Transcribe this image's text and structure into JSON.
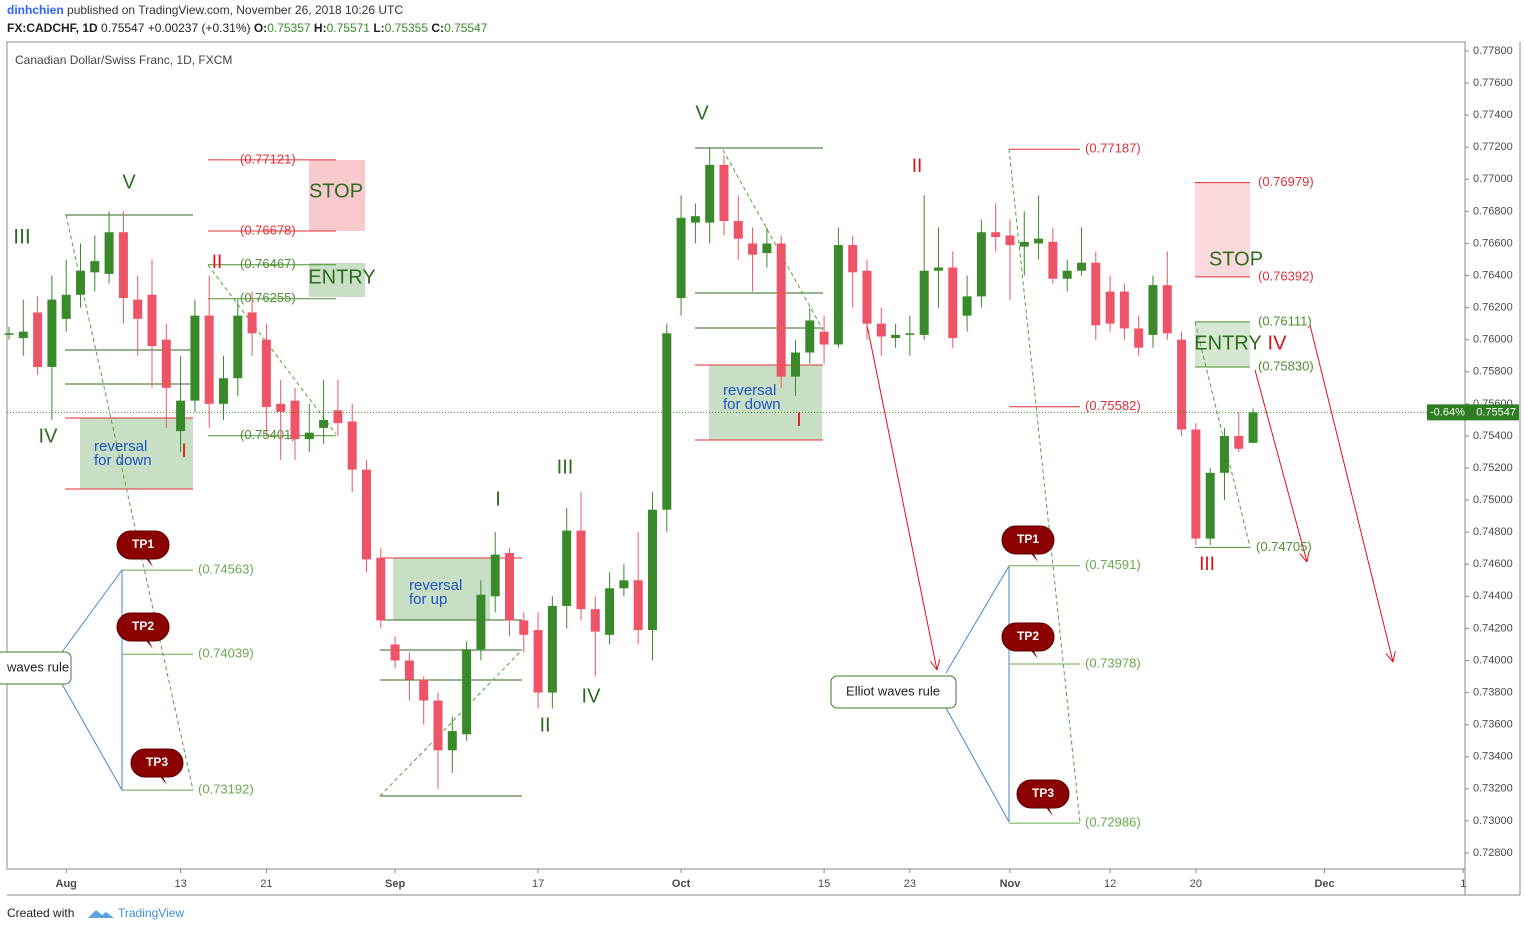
{
  "header": {
    "author": "dinhchien",
    "published": "published on TradingView.com, November 26, 2018 10:26 UTC",
    "symbol": "FX:CADCHF, 1D",
    "change": "+0.00237 (+0.31%)",
    "ohlc_labels": [
      "O:",
      "H:",
      "L:",
      "C:"
    ]
  },
  "footer": {
    "created": "Created with",
    "brand": "TradingView"
  },
  "chart_data": {
    "type": "candlestick",
    "title": "Canadian Dollar/Swiss Franc, 1D, FXCM",
    "last_change": "-0.64%",
    "up_color": "#3a8a2c",
    "down_color": "#ee5468",
    "x": [
      0,
      1,
      2,
      3,
      4,
      5,
      6,
      7,
      8,
      9,
      10,
      11,
      12,
      13,
      14,
      15,
      16,
      17,
      18,
      19,
      20,
      21,
      22,
      23,
      24,
      25,
      26,
      27,
      28,
      29,
      30,
      31,
      32,
      33,
      34,
      35,
      36,
      37,
      38,
      39,
      40,
      41,
      42,
      43,
      44,
      45,
      46,
      47,
      48,
      49,
      50,
      51,
      52,
      53,
      54,
      55,
      56,
      57,
      58,
      59,
      60,
      61,
      62,
      63,
      64,
      65,
      66,
      67,
      68,
      69,
      70,
      71,
      72,
      73,
      74,
      75,
      76,
      77,
      78,
      79,
      80,
      81,
      82,
      83,
      84,
      85,
      86,
      87
    ],
    "open": [
      0.7603,
      0.7601,
      0.7617,
      0.7583,
      0.7613,
      0.7628,
      0.7642,
      0.7641,
      0.7667,
      0.7625,
      0.7628,
      0.76,
      0.7543,
      0.7562,
      0.7615,
      0.756,
      0.7576,
      0.7617,
      0.76,
      0.756,
      0.7562,
      0.7538,
      0.7545,
      0.7556,
      0.7549,
      0.7519,
      0.7464,
      0.741,
      0.74,
      0.7388,
      0.7375,
      0.7344,
      0.7354,
      0.7407,
      0.744,
      0.7467,
      0.7425,
      0.7419,
      0.738,
      0.7434,
      0.7481,
      0.7432,
      0.7416,
      0.7445,
      0.745,
      0.7419,
      0.7494,
      0.7626,
      0.7673,
      0.7673,
      0.7709,
      0.7674,
      0.766,
      0.7654,
      0.766,
      0.7577,
      0.7592,
      0.7605,
      0.7597,
      0.7659,
      0.7643,
      0.761,
      0.7601,
      0.7603,
      0.7603,
      0.7643,
      0.7645,
      0.7615,
      0.7627,
      0.7667,
      0.7665,
      0.7658,
      0.766,
      0.7661,
      0.7638,
      0.7643,
      0.7648,
      0.763,
      0.763,
      0.7607,
      0.7603,
      0.7634,
      0.76,
      0.7544,
      0.7476,
      0.7517,
      0.754,
      0.75357
    ],
    "high": [
      0.7608,
      0.7625,
      0.7627,
      0.764,
      0.765,
      0.766,
      0.7665,
      0.768,
      0.768,
      0.764,
      0.765,
      0.761,
      0.759,
      0.7625,
      0.764,
      0.759,
      0.7625,
      0.763,
      0.761,
      0.7575,
      0.757,
      0.756,
      0.7575,
      0.7575,
      0.756,
      0.7525,
      0.747,
      0.7415,
      0.7405,
      0.739,
      0.738,
      0.7365,
      0.7412,
      0.745,
      0.748,
      0.747,
      0.743,
      0.743,
      0.744,
      0.7495,
      0.7505,
      0.744,
      0.7455,
      0.746,
      0.748,
      0.7505,
      0.761,
      0.769,
      0.7685,
      0.772,
      0.7715,
      0.769,
      0.767,
      0.767,
      0.7665,
      0.76,
      0.762,
      0.7615,
      0.767,
      0.7665,
      0.765,
      0.762,
      0.761,
      0.7615,
      0.769,
      0.767,
      0.7655,
      0.764,
      0.7675,
      0.7685,
      0.7675,
      0.768,
      0.769,
      0.767,
      0.765,
      0.767,
      0.7655,
      0.764,
      0.7635,
      0.7615,
      0.764,
      0.7655,
      0.7605,
      0.7548,
      0.752,
      0.7545,
      0.7555,
      0.75571
    ],
    "low": [
      0.76,
      0.759,
      0.7578,
      0.755,
      0.7605,
      0.762,
      0.763,
      0.7635,
      0.761,
      0.759,
      0.757,
      0.7545,
      0.753,
      0.7555,
      0.7545,
      0.755,
      0.7565,
      0.759,
      0.754,
      0.7525,
      0.7525,
      0.753,
      0.7535,
      0.754,
      0.7505,
      0.7455,
      0.742,
      0.7395,
      0.7375,
      0.736,
      0.732,
      0.733,
      0.735,
      0.74,
      0.743,
      0.7415,
      0.7405,
      0.737,
      0.737,
      0.742,
      0.7425,
      0.739,
      0.741,
      0.744,
      0.741,
      0.74,
      0.748,
      0.7615,
      0.766,
      0.766,
      0.7665,
      0.765,
      0.763,
      0.7645,
      0.757,
      0.7565,
      0.7585,
      0.7585,
      0.7595,
      0.762,
      0.76,
      0.759,
      0.7595,
      0.759,
      0.76,
      0.762,
      0.7595,
      0.7605,
      0.762,
      0.7655,
      0.7625,
      0.764,
      0.765,
      0.7635,
      0.763,
      0.764,
      0.76,
      0.7605,
      0.76,
      0.759,
      0.7595,
      0.76,
      0.754,
      0.7472,
      0.7472,
      0.75,
      0.753,
      0.75355
    ],
    "close": [
      0.7604,
      0.7605,
      0.7583,
      0.7625,
      0.7628,
      0.7643,
      0.7649,
      0.7667,
      0.7626,
      0.7613,
      0.7596,
      0.757,
      0.7562,
      0.7615,
      0.756,
      0.7576,
      0.7615,
      0.7604,
      0.7558,
      0.7555,
      0.7538,
      0.7542,
      0.755,
      0.7548,
      0.7519,
      0.7463,
      0.7425,
      0.74,
      0.7388,
      0.7375,
      0.7344,
      0.7356,
      0.7407,
      0.7441,
      0.7466,
      0.7425,
      0.7416,
      0.738,
      0.7434,
      0.7481,
      0.7432,
      0.7418,
      0.7445,
      0.745,
      0.7419,
      0.7494,
      0.7604,
      0.7676,
      0.7677,
      0.7709,
      0.7674,
      0.7663,
      0.7653,
      0.766,
      0.7577,
      0.7592,
      0.7612,
      0.7597,
      0.7659,
      0.7642,
      0.761,
      0.7602,
      0.7603,
      0.7604,
      0.7643,
      0.7645,
      0.7601,
      0.7627,
      0.7667,
      0.7664,
      0.7659,
      0.7661,
      0.7663,
      0.7638,
      0.7643,
      0.7648,
      0.7609,
      0.761,
      0.7607,
      0.7595,
      0.7634,
      0.7604,
      0.7544,
      0.7476,
      0.7517,
      0.754,
      0.7532,
      0.75547
    ],
    "xlim": [
      -0.14,
      101.82
    ],
    "xticks": [
      {
        "value": 4,
        "label": "Aug"
      },
      {
        "value": 12,
        "label": "13"
      },
      {
        "value": 18,
        "label": "21"
      },
      {
        "value": 27,
        "label": "Sep"
      },
      {
        "value": 37,
        "label": "17"
      },
      {
        "value": 47,
        "label": "Oct"
      },
      {
        "value": 57,
        "label": "15"
      },
      {
        "value": 63,
        "label": "23"
      },
      {
        "value": 70,
        "label": "Nov"
      },
      {
        "value": 77,
        "label": "12"
      },
      {
        "value": 83,
        "label": "20"
      },
      {
        "value": 92,
        "label": "Dec"
      },
      {
        "value": 101.7,
        "label": "1"
      }
    ],
    "ylim": [
      0.727,
      0.77856
    ],
    "yticks": [
      {
        "value": 0.778,
        "label": "0.77800"
      },
      {
        "value": 0.776,
        "label": "0.77600"
      },
      {
        "value": 0.774,
        "label": "0.77400"
      },
      {
        "value": 0.772,
        "label": "0.77200"
      },
      {
        "value": 0.77,
        "label": "0.77000"
      },
      {
        "value": 0.768,
        "label": "0.76800"
      },
      {
        "value": 0.766,
        "label": "0.76600"
      },
      {
        "value": 0.764,
        "label": "0.76400"
      },
      {
        "value": 0.762,
        "label": "0.76200"
      },
      {
        "value": 0.76,
        "label": "0.76000"
      },
      {
        "value": 0.758,
        "label": "0.75800"
      },
      {
        "value": 0.756,
        "label": "0.75600"
      },
      {
        "value": 0.754,
        "label": "0.75400"
      },
      {
        "value": 0.752,
        "label": "0.75200"
      },
      {
        "value": 0.75,
        "label": "0.75000"
      },
      {
        "value": 0.748,
        "label": "0.74800"
      },
      {
        "value": 0.746,
        "label": "0.74600"
      },
      {
        "value": 0.744,
        "label": "0.74400"
      },
      {
        "value": 0.742,
        "label": "0.74200"
      },
      {
        "value": 0.74,
        "label": "0.74000"
      },
      {
        "value": 0.738,
        "label": "0.73800"
      },
      {
        "value": 0.736,
        "label": "0.73600"
      },
      {
        "value": 0.734,
        "label": "0.73400"
      },
      {
        "value": 0.732,
        "label": "0.73200"
      },
      {
        "value": 0.73,
        "label": "0.73000"
      },
      {
        "value": 0.728,
        "label": "0.72800"
      }
    ],
    "levels": [
      {
        "value": 0.77121,
        "label": "(0.77121)",
        "color": "#e0303a"
      },
      {
        "value": 0.76678,
        "label": "(0.76678)",
        "color": "#e0303a"
      },
      {
        "value": 0.76467,
        "label": "(0.76467)",
        "color": "#4f8f30"
      },
      {
        "value": 0.76255,
        "label": "(0.76255)",
        "color": "#4f8f30"
      },
      {
        "value": 0.75401,
        "label": "(0.75401)",
        "color": "#4f8f30"
      },
      {
        "value": 0.74563,
        "label": "(0.74563)",
        "color": "#6aa84f"
      },
      {
        "value": 0.74039,
        "label": "(0.74039)",
        "color": "#6aa84f"
      },
      {
        "value": 0.73192,
        "label": "(0.73192)",
        "color": "#6aa84f"
      },
      {
        "value": 0.77187,
        "label": "(0.77187)",
        "color": "#e0303a"
      },
      {
        "value": 0.76979,
        "label": "(0.76979)",
        "color": "#e0303a"
      },
      {
        "value": 0.76392,
        "label": "(0.76392)",
        "color": "#e0303a"
      },
      {
        "value": 0.76111,
        "label": "(0.76111)",
        "color": "#4f8f30"
      },
      {
        "value": 0.7583,
        "label": "(0.75830)",
        "color": "#4f8f30"
      },
      {
        "value": 0.75582,
        "label": "(0.75582)",
        "color": "#e0303a"
      },
      {
        "value": 0.74705,
        "label": "(0.74705)",
        "color": "#4f8f30"
      },
      {
        "value": 0.74591,
        "label": "(0.74591)",
        "color": "#6aa84f"
      },
      {
        "value": 0.73978,
        "label": "(0.73978)",
        "color": "#6aa84f"
      },
      {
        "value": 0.72986,
        "label": "(0.72986)",
        "color": "#6aa84f"
      }
    ],
    "annotations": [
      {
        "text": "III",
        "color": "#2e6b1f"
      },
      {
        "text": "V",
        "color": "#2e6b1f"
      },
      {
        "text": "IV",
        "color": "#2e6b1f"
      },
      {
        "text": "II",
        "color": "#e0101a"
      },
      {
        "text": "I",
        "color": "#e0101a"
      },
      {
        "text": "STOP",
        "color": "#2e6b1f"
      },
      {
        "text": "ENTRY",
        "color": "#2e6b1f"
      },
      {
        "text": "reversal",
        "color": "#1f55c8"
      },
      {
        "text": "for down",
        "color": "#1f55c8"
      },
      {
        "text": "I",
        "color": "#2e6b1f"
      },
      {
        "text": "III",
        "color": "#2e6b1f"
      },
      {
        "text": "II",
        "color": "#2e6b1f"
      },
      {
        "text": "IV",
        "color": "#2e6b1f"
      },
      {
        "text": "V",
        "color": "#2e6b1f"
      },
      {
        "text": "reversal",
        "color": "#1f55c8"
      },
      {
        "text": "for up",
        "color": "#1f55c8"
      },
      {
        "text": "reversal",
        "color": "#1f55c8"
      },
      {
        "text": "for down",
        "color": "#1f55c8"
      },
      {
        "text": "I",
        "color": "#e0101a"
      },
      {
        "text": "II",
        "color": "#e0101a"
      },
      {
        "text": "STOP",
        "color": "#2e6b1f"
      },
      {
        "text": "ENTRY",
        "color": "#2e6b1f"
      },
      {
        "text": "IV",
        "color": "#e0101a"
      },
      {
        "text": "III",
        "color": "#e0101a"
      }
    ],
    "targets": [
      "TP1",
      "TP2",
      "TP3",
      "TP1",
      "TP2",
      "TP3"
    ],
    "rules": [
      "waves rule",
      "Elliot waves rule"
    ]
  }
}
